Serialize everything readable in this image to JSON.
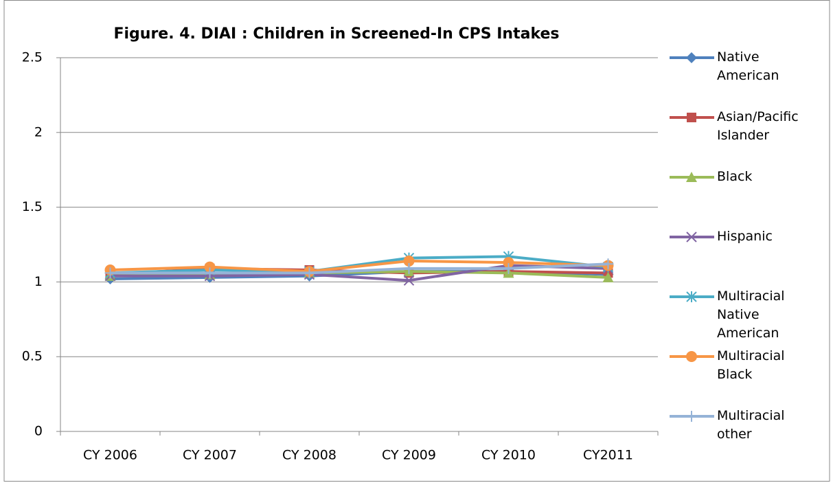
{
  "chart_data": {
    "type": "line",
    "title": "Figure. 4. DIAI : Children in Screened-In CPS Intakes",
    "categories": [
      "CY 2006",
      "CY 2007",
      "CY 2008",
      "CY 2009",
      "CY 2010",
      "CY2011"
    ],
    "ylim": [
      0,
      2.5
    ],
    "yticks": [
      0,
      0.5,
      1,
      1.5,
      2,
      2.5
    ],
    "grid": true,
    "legend": "right",
    "series": [
      {
        "name": "Native American",
        "color": "#4f81bd",
        "marker": "diamond",
        "values": [
          1.02,
          1.03,
          1.04,
          1.07,
          1.07,
          1.05
        ]
      },
      {
        "name": "Asian/Pacific Islander",
        "color": "#c0504d",
        "marker": "square",
        "values": [
          1.05,
          1.09,
          1.08,
          1.06,
          1.07,
          1.06
        ]
      },
      {
        "name": "Black",
        "color": "#9bbb59",
        "marker": "triangle",
        "values": [
          1.04,
          1.05,
          1.06,
          1.07,
          1.06,
          1.03
        ]
      },
      {
        "name": "Hispanic",
        "color": "#8064a2",
        "marker": "x",
        "values": [
          1.04,
          1.04,
          1.05,
          1.01,
          1.11,
          1.09
        ]
      },
      {
        "name": "Multiracial Native American",
        "color": "#4bacc6",
        "marker": "star",
        "values": [
          1.06,
          1.08,
          1.07,
          1.16,
          1.17,
          1.1
        ]
      },
      {
        "name": "Multiracial Black",
        "color": "#f79646",
        "marker": "circle",
        "values": [
          1.08,
          1.1,
          1.07,
          1.14,
          1.13,
          1.11
        ]
      },
      {
        "name": "Multiracial other",
        "color": "#95b3d7",
        "marker": "plus",
        "values": [
          1.06,
          1.06,
          1.06,
          1.09,
          1.09,
          1.12
        ]
      }
    ]
  }
}
